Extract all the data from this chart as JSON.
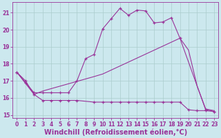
{
  "background_color": "#cce8ee",
  "grid_color": "#aacccc",
  "line_color": "#993399",
  "xlim": [
    -0.5,
    23.5
  ],
  "ylim": [
    14.8,
    21.6
  ],
  "yticks": [
    15,
    16,
    17,
    18,
    19,
    20,
    21
  ],
  "xticks": [
    0,
    1,
    2,
    3,
    4,
    5,
    6,
    7,
    8,
    9,
    10,
    11,
    12,
    13,
    14,
    15,
    16,
    17,
    18,
    19,
    20,
    21,
    22,
    23
  ],
  "xlabel": "Windchill (Refroidissement éolien,°C)",
  "xlabel_fontsize": 7.0,
  "tick_fontsize": 5.5,
  "curve1_x": [
    0,
    1,
    2,
    3,
    4,
    5,
    6,
    7,
    8,
    9,
    10,
    11,
    12,
    13,
    14,
    15,
    16,
    17,
    18,
    19,
    22,
    23
  ],
  "curve1_y": [
    17.5,
    16.9,
    16.3,
    16.3,
    16.3,
    16.3,
    16.3,
    17.0,
    18.3,
    18.55,
    20.05,
    20.65,
    21.25,
    20.85,
    21.15,
    21.1,
    20.4,
    20.45,
    20.7,
    19.5,
    15.3,
    15.2
  ],
  "curve2_x": [
    0,
    2,
    3,
    9,
    10,
    19,
    20,
    21,
    22,
    23
  ],
  "curve2_y": [
    17.5,
    16.2,
    16.4,
    17.25,
    17.4,
    19.5,
    18.8,
    16.7,
    15.35,
    15.25
  ],
  "curve3_x": [
    0,
    1,
    2,
    3,
    4,
    5,
    6,
    7,
    9,
    10,
    11,
    12,
    13,
    14,
    15,
    16,
    17,
    18,
    19,
    20,
    21,
    22,
    23
  ],
  "curve3_y": [
    17.5,
    17.0,
    16.2,
    15.85,
    15.85,
    15.85,
    15.85,
    15.85,
    15.75,
    15.75,
    15.75,
    15.75,
    15.75,
    15.75,
    15.75,
    15.75,
    15.75,
    15.75,
    15.75,
    15.3,
    15.25,
    15.25,
    15.2
  ]
}
